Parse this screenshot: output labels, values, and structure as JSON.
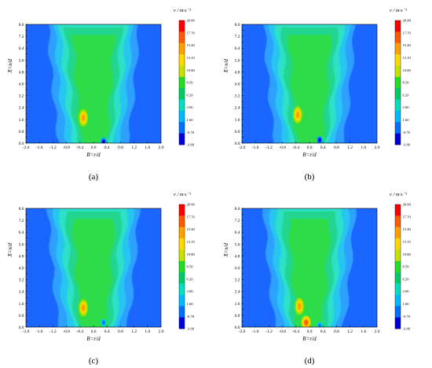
{
  "figure": {
    "x_axis_label": "R=r/d",
    "y_axis_label": "X=x/d",
    "colorbar_title": "v / m·s⁻¹",
    "colorbar_ticks": [
      "20.00",
      "17.70",
      "15.40",
      "13.10",
      "10.80",
      "8.50",
      "6.20",
      "3.90",
      "1.60",
      "-0.70",
      "-3.00"
    ],
    "colorbar_colors": [
      "#ff0000",
      "#ff5a00",
      "#ffa000",
      "#ffd800",
      "#c8e000",
      "#22dd22",
      "#00cc66",
      "#00e0c0",
      "#00b8ff",
      "#0070ff",
      "#0000dd"
    ],
    "background_color": "#1a66ff"
  },
  "chart_data": [
    {
      "type": "heatmap",
      "panel_label": "(a)",
      "xlabel": "R=r/d",
      "ylabel": "X=x/d",
      "xlim": [
        -2.0,
        2.0
      ],
      "ylim": [
        0.0,
        8.0
      ],
      "x_ticks": [
        "-2.0",
        "-1.6",
        "-1.2",
        "-0.8",
        "-0.4",
        "0.0",
        "0.4",
        "0.8",
        "1.2",
        "1.6",
        "2.0"
      ],
      "y_ticks": [
        "0.0",
        "0.4",
        "0.8",
        "1.2",
        "1.6",
        "2.0",
        "2.4",
        "2.8",
        "3.2",
        "3.6",
        "4.0",
        "4.4",
        "4.8",
        "5.2",
        "5.6",
        "6.0",
        "6.4",
        "6.8",
        "7.2",
        "7.6",
        "8.0"
      ],
      "colorbar_title": "v / m·s⁻¹",
      "colorbar_range": [
        -3.0,
        20.0
      ],
      "colorbar_ticks": [
        20.0,
        17.7,
        15.4,
        13.1,
        10.8,
        8.5,
        6.2,
        3.9,
        1.6,
        -0.7,
        -3.0
      ],
      "features": [
        {
          "kind": "jet_core",
          "x": -0.3,
          "y": 1.7,
          "peak_velocity": 15.4
        },
        {
          "kind": "low_velocity_spot",
          "x": 0.3,
          "y": 0.1,
          "min_velocity": -3.0
        }
      ]
    },
    {
      "type": "heatmap",
      "panel_label": "(b)",
      "xlabel": "R=r/d",
      "ylabel": "X=x/d",
      "xlim": [
        -2.0,
        2.0
      ],
      "ylim": [
        0.0,
        8.0
      ],
      "x_ticks": [
        "-2.0",
        "-1.6",
        "-1.2",
        "-0.8",
        "-0.4",
        "0.0",
        "0.4",
        "0.8",
        "1.2",
        "1.6",
        "2.0"
      ],
      "y_ticks": [
        "0.0",
        "0.4",
        "0.8",
        "1.2",
        "1.6",
        "2.0",
        "2.4",
        "2.8",
        "3.2",
        "3.6",
        "4.0",
        "4.4",
        "4.8",
        "5.2",
        "5.6",
        "6.0",
        "6.4",
        "6.8",
        "7.2",
        "7.6",
        "8.0"
      ],
      "colorbar_title": "v / m·s⁻¹",
      "colorbar_range": [
        -3.0,
        20.0
      ],
      "colorbar_ticks": [
        20.0,
        17.7,
        15.4,
        13.1,
        10.8,
        8.5,
        6.2,
        3.9,
        1.6,
        -0.7,
        -3.0
      ],
      "features": [
        {
          "kind": "jet_core",
          "x": -0.35,
          "y": 1.9,
          "peak_velocity": 15.4
        },
        {
          "kind": "low_velocity_spot",
          "x": 0.3,
          "y": 0.2,
          "min_velocity": -3.0
        }
      ]
    },
    {
      "type": "heatmap",
      "panel_label": "(c)",
      "xlabel": "R=r/d",
      "ylabel": "X=x/d",
      "xlim": [
        -2.0,
        2.0
      ],
      "ylim": [
        0.0,
        8.0
      ],
      "x_ticks": [
        "-2.0",
        "-1.6",
        "-1.2",
        "-0.8",
        "-0.4",
        "0.0",
        "0.4",
        "0.8",
        "1.2",
        "1.6",
        "2.0"
      ],
      "y_ticks": [
        "0.0",
        "0.4",
        "0.8",
        "1.2",
        "1.6",
        "2.0",
        "2.4",
        "2.8",
        "3.2",
        "3.6",
        "4.0",
        "4.4",
        "4.8",
        "5.2",
        "5.6",
        "6.0",
        "6.4",
        "6.8",
        "7.2",
        "7.6",
        "8.0"
      ],
      "colorbar_title": "v / m·s⁻¹",
      "colorbar_range": [
        -3.0,
        20.0
      ],
      "colorbar_ticks": [
        20.0,
        17.7,
        15.4,
        13.1,
        10.8,
        8.5,
        6.2,
        3.9,
        1.6,
        -0.7,
        -3.0
      ],
      "features": [
        {
          "kind": "jet_core",
          "x": -0.3,
          "y": 1.3,
          "peak_velocity": 15.4
        },
        {
          "kind": "low_velocity_spot",
          "x": 0.3,
          "y": 0.3,
          "min_velocity": -0.7
        }
      ]
    },
    {
      "type": "heatmap",
      "panel_label": "(d)",
      "xlabel": "R=r/d",
      "ylabel": "X=x/d",
      "xlim": [
        -2.0,
        2.0
      ],
      "ylim": [
        0.0,
        8.0
      ],
      "x_ticks": [
        "-2.0",
        "-1.6",
        "-1.2",
        "-0.8",
        "-0.4",
        "0.0",
        "0.4",
        "0.8",
        "1.2",
        "1.6",
        "2.0"
      ],
      "y_ticks": [
        "0.0",
        "0.4",
        "0.8",
        "1.2",
        "1.6",
        "2.0",
        "2.4",
        "2.8",
        "3.2",
        "3.6",
        "4.0",
        "4.4",
        "4.8",
        "5.2",
        "5.6",
        "6.0",
        "6.4",
        "6.8",
        "7.2",
        "7.6",
        "8.0"
      ],
      "colorbar_title": "v / m·s⁻¹",
      "colorbar_range": [
        -3.0,
        20.0
      ],
      "colorbar_ticks": [
        20.0,
        17.7,
        15.4,
        13.1,
        10.8,
        8.5,
        6.2,
        3.9,
        1.6,
        -0.7,
        -3.0
      ],
      "features": [
        {
          "kind": "jet_core",
          "x": -0.3,
          "y": 1.4,
          "peak_velocity": 15.4
        },
        {
          "kind": "jet_core",
          "x": -0.1,
          "y": 0.3,
          "peak_velocity": 20.0
        },
        {
          "kind": "low_velocity_spot",
          "x": 0.3,
          "y": 0.1,
          "min_velocity": -0.7
        }
      ]
    }
  ]
}
